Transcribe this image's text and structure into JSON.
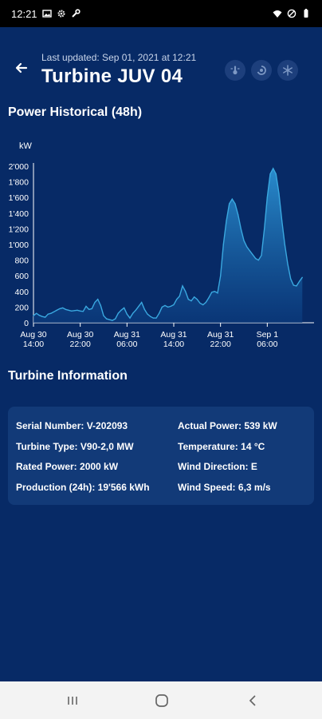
{
  "status_bar": {
    "time": "12:21",
    "left_icons": [
      "image-icon",
      "gear-icon",
      "wrench-icon"
    ],
    "right_icons": [
      "wifi-icon",
      "do-not-disturb-icon",
      "battery-icon"
    ]
  },
  "header": {
    "last_updated": "Last updated: Sep 01, 2021 at 12:21",
    "title": "Turbine JUV 04",
    "action_icons": [
      "temperature-icon",
      "wind-icon",
      "snowflake-icon"
    ]
  },
  "power_section": {
    "title": "Power Historical (48h)"
  },
  "chart_data": {
    "type": "area",
    "title": "Power Historical (48h)",
    "ylabel": "kW",
    "ylim": [
      0,
      2000
    ],
    "yticks": [
      "0",
      "200",
      "400",
      "600",
      "800",
      "1'000",
      "1'200",
      "1'400",
      "1'600",
      "1'800",
      "2'000"
    ],
    "xticks": [
      {
        "h": 0,
        "line1": "Aug 30",
        "line2": "14:00"
      },
      {
        "h": 8,
        "line1": "Aug 30",
        "line2": "22:00"
      },
      {
        "h": 16,
        "line1": "Aug 31",
        "line2": "06:00"
      },
      {
        "h": 24,
        "line1": "Aug 31",
        "line2": "14:00"
      },
      {
        "h": 32,
        "line1": "Aug 31",
        "line2": "22:00"
      },
      {
        "h": 40,
        "line1": "Sep 1",
        "line2": "06:00"
      }
    ],
    "x_unit": "hours since Aug 30 14:00",
    "xlim": [
      0,
      48
    ],
    "series": [
      {
        "name": "Power",
        "points": [
          [
            0,
            90
          ],
          [
            0.5,
            120
          ],
          [
            1,
            95
          ],
          [
            1.5,
            80
          ],
          [
            2,
            70
          ],
          [
            2.5,
            110
          ],
          [
            3,
            120
          ],
          [
            3.5,
            140
          ],
          [
            4,
            160
          ],
          [
            4.5,
            180
          ],
          [
            5,
            190
          ],
          [
            5.5,
            170
          ],
          [
            6,
            160
          ],
          [
            6.5,
            150
          ],
          [
            7,
            155
          ],
          [
            7.5,
            160
          ],
          [
            8,
            150
          ],
          [
            8.5,
            145
          ],
          [
            9,
            210
          ],
          [
            9.5,
            170
          ],
          [
            10,
            180
          ],
          [
            10.5,
            260
          ],
          [
            11,
            300
          ],
          [
            11.5,
            220
          ],
          [
            12,
            90
          ],
          [
            12.5,
            50
          ],
          [
            13,
            40
          ],
          [
            13.5,
            30
          ],
          [
            14,
            50
          ],
          [
            14.5,
            120
          ],
          [
            15,
            160
          ],
          [
            15.5,
            190
          ],
          [
            16,
            110
          ],
          [
            16.5,
            60
          ],
          [
            17,
            120
          ],
          [
            17.5,
            160
          ],
          [
            18,
            210
          ],
          [
            18.5,
            260
          ],
          [
            19,
            170
          ],
          [
            19.5,
            110
          ],
          [
            20,
            80
          ],
          [
            20.5,
            60
          ],
          [
            21,
            60
          ],
          [
            21.5,
            120
          ],
          [
            22,
            200
          ],
          [
            22.5,
            220
          ],
          [
            23,
            200
          ],
          [
            23.5,
            210
          ],
          [
            24,
            230
          ],
          [
            24.5,
            300
          ],
          [
            25,
            340
          ],
          [
            25.5,
            470
          ],
          [
            26,
            400
          ],
          [
            26.5,
            300
          ],
          [
            27,
            280
          ],
          [
            27.5,
            330
          ],
          [
            28,
            300
          ],
          [
            28.5,
            250
          ],
          [
            29,
            230
          ],
          [
            29.5,
            260
          ],
          [
            30,
            320
          ],
          [
            30.5,
            390
          ],
          [
            31,
            400
          ],
          [
            31.5,
            380
          ],
          [
            32,
            600
          ],
          [
            32.5,
            1000
          ],
          [
            33,
            1300
          ],
          [
            33.5,
            1520
          ],
          [
            34,
            1580
          ],
          [
            34.5,
            1520
          ],
          [
            35,
            1380
          ],
          [
            35.5,
            1200
          ],
          [
            36,
            1050
          ],
          [
            36.5,
            970
          ],
          [
            37,
            920
          ],
          [
            37.5,
            870
          ],
          [
            38,
            820
          ],
          [
            38.5,
            800
          ],
          [
            39,
            860
          ],
          [
            39.5,
            1200
          ],
          [
            40,
            1600
          ],
          [
            40.5,
            1900
          ],
          [
            41,
            1970
          ],
          [
            41.5,
            1900
          ],
          [
            42,
            1650
          ],
          [
            42.5,
            1300
          ],
          [
            43,
            1000
          ],
          [
            43.5,
            750
          ],
          [
            44,
            560
          ],
          [
            44.5,
            480
          ],
          [
            45,
            470
          ],
          [
            45.5,
            530
          ],
          [
            46,
            580
          ]
        ]
      }
    ],
    "grid": false,
    "legend": "none",
    "colors": {
      "line": "#3aa8e0",
      "fill_top": "#2c8fd0",
      "fill_bottom": "#0a3a7a",
      "axis": "#ffffff"
    }
  },
  "turbine_section": {
    "title": "Turbine Information"
  },
  "info": {
    "left": [
      {
        "label": "Serial Number:",
        "value": "V-202093"
      },
      {
        "label": "Turbine Type:",
        "value": "V90-2,0 MW"
      },
      {
        "label": "Rated Power:",
        "value": "2000 kW"
      },
      {
        "label": "Production (24h):",
        "value": "19'566 kWh"
      }
    ],
    "right": [
      {
        "label": "Actual Power:",
        "value": "539 kW"
      },
      {
        "label": "Temperature:",
        "value": "14 °C"
      },
      {
        "label": "Wind Direction:",
        "value": "E"
      },
      {
        "label": "Wind Speed:",
        "value": "6,3 m/s"
      }
    ]
  },
  "nav_bar": {
    "buttons": [
      "recent-apps-icon",
      "home-icon",
      "back-nav-icon"
    ]
  },
  "colors": {
    "background": "#072a66",
    "card": "#123a78",
    "icon_button": "#1d3f7c",
    "accent": "#3aa8e0"
  }
}
